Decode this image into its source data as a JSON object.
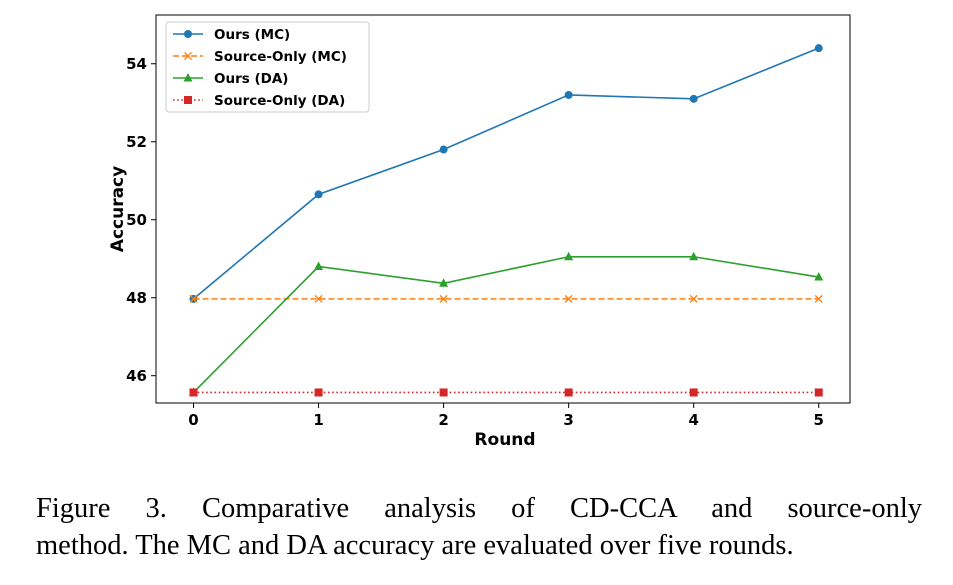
{
  "chart_data": {
    "type": "line",
    "x": [
      0,
      1,
      2,
      3,
      4,
      5
    ],
    "xlabel": "Round",
    "ylabel": "Accuracy",
    "xlim": [
      -0.3,
      5.25
    ],
    "ylim": [
      45.3,
      55.25
    ],
    "xticks": [
      0,
      1,
      2,
      3,
      4,
      5
    ],
    "yticks": [
      46,
      48,
      50,
      52,
      54
    ],
    "grid": false,
    "legend_location": "top-left",
    "series": [
      {
        "name": "Ours (MC)",
        "values": [
          47.97,
          50.65,
          51.8,
          53.2,
          53.1,
          54.4
        ],
        "color": "#1f77b4",
        "linestyle": "solid",
        "marker": "circle"
      },
      {
        "name": "Source-Only (MC)",
        "values": [
          47.97,
          47.97,
          47.97,
          47.97,
          47.97,
          47.97
        ],
        "color": "#ff7f0e",
        "linestyle": "dashed",
        "marker": "x"
      },
      {
        "name": "Ours (DA)",
        "values": [
          45.57,
          48.8,
          48.37,
          49.05,
          49.05,
          48.53
        ],
        "color": "#2ca02c",
        "linestyle": "solid",
        "marker": "triangle"
      },
      {
        "name": "Source-Only (DA)",
        "values": [
          45.57,
          45.57,
          45.57,
          45.57,
          45.57,
          45.57
        ],
        "color": "#d62728",
        "linestyle": "dotted",
        "marker": "square"
      }
    ]
  },
  "caption": {
    "line1": "Figure 3.   Comparative analysis of CD-CCA and source-only",
    "line2": "method. The MC and DA accuracy are evaluated over five rounds."
  }
}
